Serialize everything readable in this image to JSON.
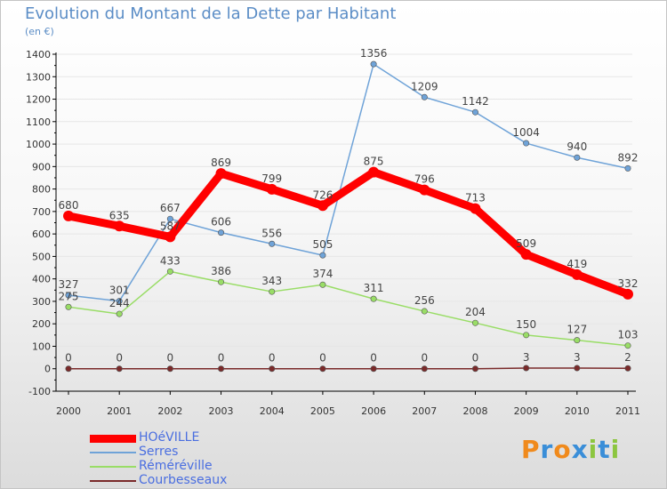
{
  "colors": {
    "title": "#5b8dc6",
    "axis": "#000000",
    "grid": "#e6e6e6",
    "value_label": "#444444",
    "legend_text": "#4a6ee0"
  },
  "chart_data": {
    "type": "line",
    "title": "Evolution du Montant de la Dette par Habitant",
    "subtitle": "(en €)",
    "xlabel": "",
    "ylabel": "",
    "x": [
      "2000",
      "2001",
      "2002",
      "2003",
      "2004",
      "2005",
      "2006",
      "2007",
      "2008",
      "2009",
      "2010",
      "2011"
    ],
    "ylim": [
      -100,
      1400
    ],
    "yticks": [
      -100,
      0,
      100,
      200,
      300,
      400,
      500,
      600,
      700,
      800,
      900,
      1000,
      1100,
      1200,
      1300,
      1400
    ],
    "grid": true,
    "legend_position": "bottom-left",
    "series": [
      {
        "name": "HOéVILLE",
        "color": "#ff0000",
        "width": "thick",
        "values": [
          680,
          635,
          587,
          869,
          799,
          726,
          875,
          796,
          713,
          509,
          419,
          332
        ]
      },
      {
        "name": "Serres",
        "color": "#6fa3d8",
        "width": "thin",
        "values": [
          327,
          301,
          667,
          606,
          556,
          505,
          1356,
          1209,
          1142,
          1004,
          940,
          892
        ]
      },
      {
        "name": "Réméréville",
        "color": "#99dd66",
        "width": "thin",
        "values": [
          275,
          244,
          433,
          386,
          343,
          374,
          311,
          256,
          204,
          150,
          127,
          103
        ]
      },
      {
        "name": "Courbesseaux",
        "color": "#7a2a2a",
        "width": "thin",
        "values": [
          0,
          0,
          0,
          0,
          0,
          0,
          0,
          0,
          0,
          3,
          3,
          2
        ]
      }
    ]
  },
  "logo": {
    "text": "Proxiti",
    "letters": [
      {
        "ch": "P",
        "color": "#f08a1c"
      },
      {
        "ch": "r",
        "color": "#3a8ed8"
      },
      {
        "ch": "o",
        "color": "#f08a1c"
      },
      {
        "ch": "x",
        "color": "#3a8ed8"
      },
      {
        "ch": "i",
        "color": "#8cc63f"
      },
      {
        "ch": "t",
        "color": "#3a8ed8"
      },
      {
        "ch": "i",
        "color": "#8cc63f"
      }
    ]
  }
}
